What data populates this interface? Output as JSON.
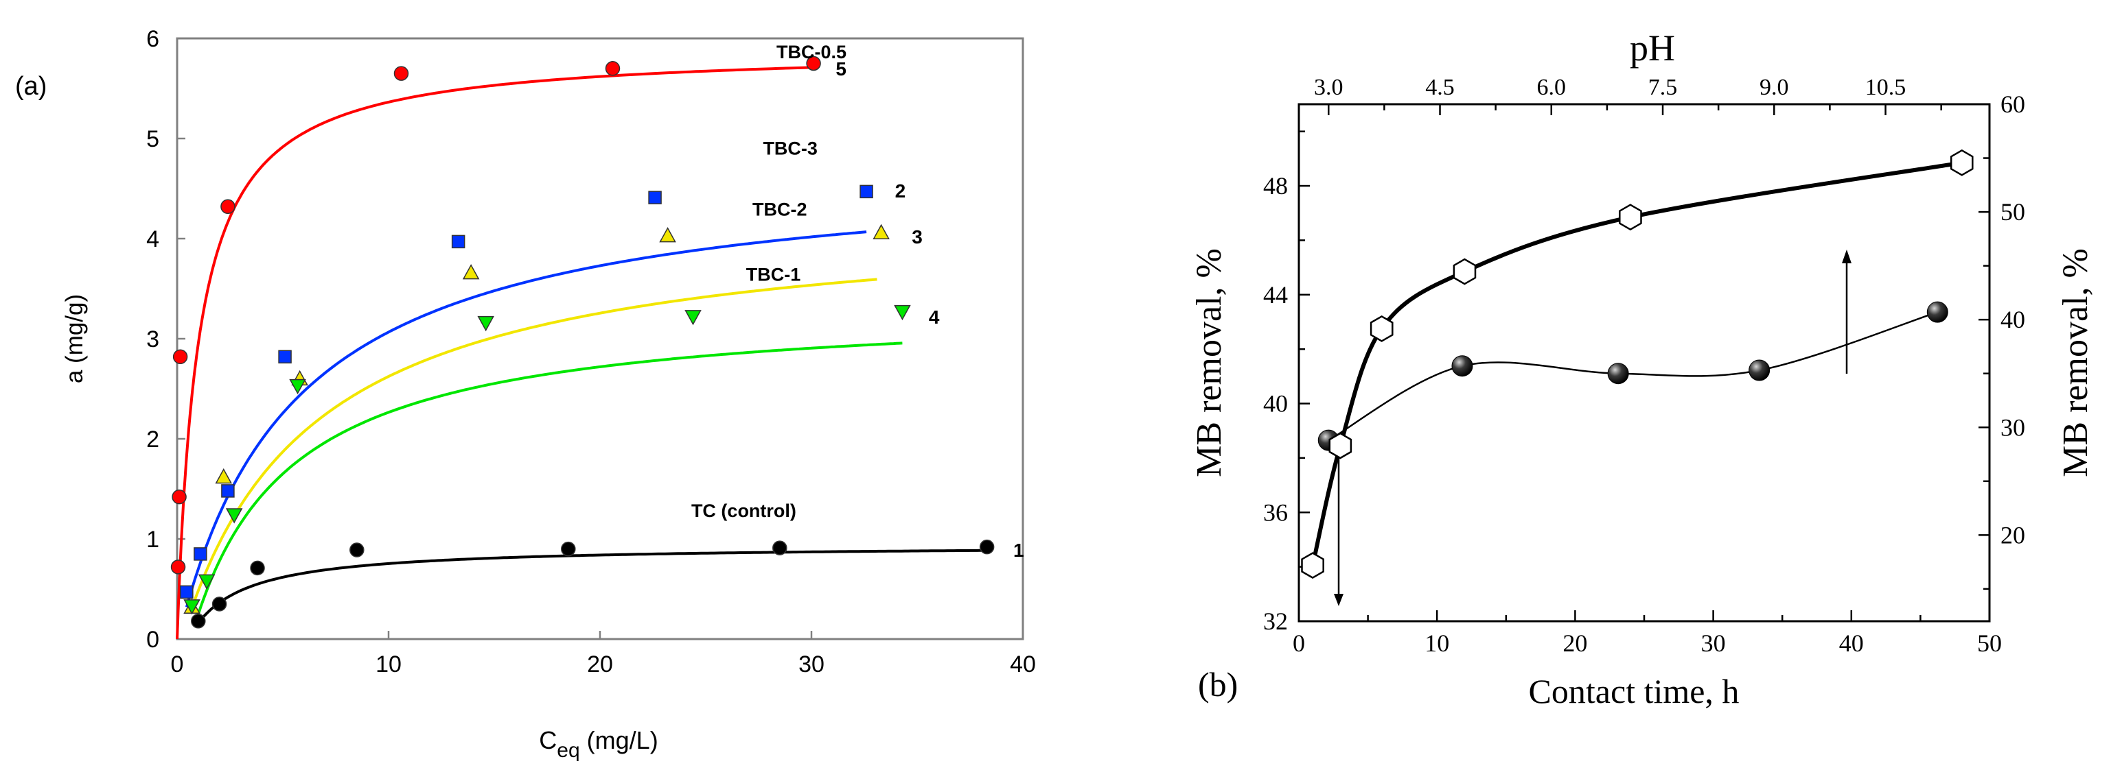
{
  "chart_data": [
    {
      "panel_label": "(a)",
      "type": "scatter",
      "xlabel_main": "C",
      "xlabel_sub": "eq",
      "xlabel_units": "(mg/L)",
      "ylabel": "a (mg/g)",
      "xlim": [
        0,
        40
      ],
      "ylim": [
        0,
        6
      ],
      "xticks": [
        "0",
        "10",
        "20",
        "30",
        "40"
      ],
      "yticks": [
        "0",
        "1",
        "2",
        "3",
        "4",
        "5",
        "6"
      ],
      "grid": false,
      "series": [
        {
          "name": "TBC-0.5",
          "number": "5",
          "color": "#ff0000",
          "marker": "circle",
          "points": [
            [
              0.05,
              0.72
            ],
            [
              0.1,
              1.42
            ],
            [
              0.15,
              2.82
            ],
            [
              2.4,
              4.32
            ],
            [
              10.6,
              5.65
            ],
            [
              20.6,
              5.7
            ],
            [
              30.1,
              5.75
            ]
          ],
          "fit": {
            "qmax": 5.9,
            "K": 1.0,
            "from": 0,
            "to": 30.3
          }
        },
        {
          "name": "TBC-3",
          "number": "2",
          "color": "#0033ff",
          "marker": "square",
          "points": [
            [
              0.45,
              0.47
            ],
            [
              1.1,
              0.85
            ],
            [
              2.4,
              1.48
            ],
            [
              5.1,
              2.82
            ],
            [
              13.3,
              3.97
            ],
            [
              22.6,
              4.41
            ],
            [
              32.6,
              4.47
            ]
          ],
          "fit": {
            "qmax": 4.75,
            "K": 0.185,
            "x0": 0.45,
            "y0": 0.32,
            "from": 0.45,
            "to": 32.6
          }
        },
        {
          "name": "TBC-2",
          "number": "3",
          "color": "#f2e600",
          "marker": "triangle-up",
          "points": [
            [
              0.7,
              0.32
            ],
            [
              2.2,
              1.62
            ],
            [
              5.8,
              2.6
            ],
            [
              13.9,
              3.66
            ],
            [
              23.2,
              4.03
            ],
            [
              33.3,
              4.06
            ]
          ],
          "fit": {
            "qmax": 4.26,
            "K": 0.17,
            "x0": 0.65,
            "y0": 0.28,
            "from": 0.65,
            "to": 33.1
          }
        },
        {
          "name": "TBC-1",
          "number": "4",
          "color": "#00e600",
          "marker": "triangle-down",
          "points": [
            [
              0.7,
              0.33
            ],
            [
              1.4,
              0.58
            ],
            [
              2.7,
              1.24
            ],
            [
              5.7,
              2.53
            ],
            [
              14.6,
              3.16
            ],
            [
              24.4,
              3.22
            ],
            [
              34.3,
              3.27
            ]
          ],
          "fit": {
            "qmax": 3.35,
            "K": 0.26,
            "x0": 0.85,
            "y0": 0.15,
            "from": 0.85,
            "to": 34.3
          }
        },
        {
          "name": "TC (control)",
          "number": "1",
          "color": "#000000",
          "marker": "circle",
          "points": [
            [
              1.0,
              0.18
            ],
            [
              2.0,
              0.35
            ],
            [
              3.8,
              0.71
            ],
            [
              8.5,
              0.89
            ],
            [
              18.5,
              0.9
            ],
            [
              28.5,
              0.91
            ],
            [
              38.3,
              0.92
            ]
          ],
          "fit": {
            "qmax": 0.94,
            "K": 0.55,
            "x0": 1.0,
            "y0": 0.16,
            "from": 1.0,
            "to": 38.3
          }
        }
      ]
    },
    {
      "panel_label": "(b)",
      "type": "line",
      "xlabel": "Contact time, h",
      "x2label": "pH",
      "ylabel_left": "MB removal, %",
      "ylabel_right": "MB removal, %",
      "xlim": [
        0,
        50
      ],
      "x2lim": [
        2.6,
        11.9
      ],
      "ylim_left": [
        32,
        51
      ],
      "ylim_right": [
        12,
        60
      ],
      "xticks": [
        "0",
        "10",
        "20",
        "30",
        "40",
        "50"
      ],
      "x2ticks": [
        "3.0",
        "4.5",
        "6.0",
        "7.5",
        "9.0",
        "10.5"
      ],
      "yticks_left": [
        "32",
        "36",
        "40",
        "44",
        "48"
      ],
      "yticks_right": [
        "20",
        "30",
        "40",
        "50",
        "60"
      ],
      "grid": false,
      "series": [
        {
          "name": "",
          "axis_x": "Contact time, h",
          "axis_y": "left",
          "marker": "open-hexagon",
          "x": [
            1,
            3,
            6,
            12,
            24,
            48
          ],
          "y": [
            34.05,
            38.45,
            42.75,
            44.85,
            46.85,
            48.85
          ]
        },
        {
          "name": "",
          "axis_x": "pH",
          "axis_y": "right",
          "marker": "filled-sphere",
          "x": [
            3.0,
            4.8,
            6.9,
            8.8,
            11.2
          ],
          "y": [
            28.8,
            35.7,
            35.0,
            35.3,
            40.7
          ]
        }
      ]
    }
  ]
}
